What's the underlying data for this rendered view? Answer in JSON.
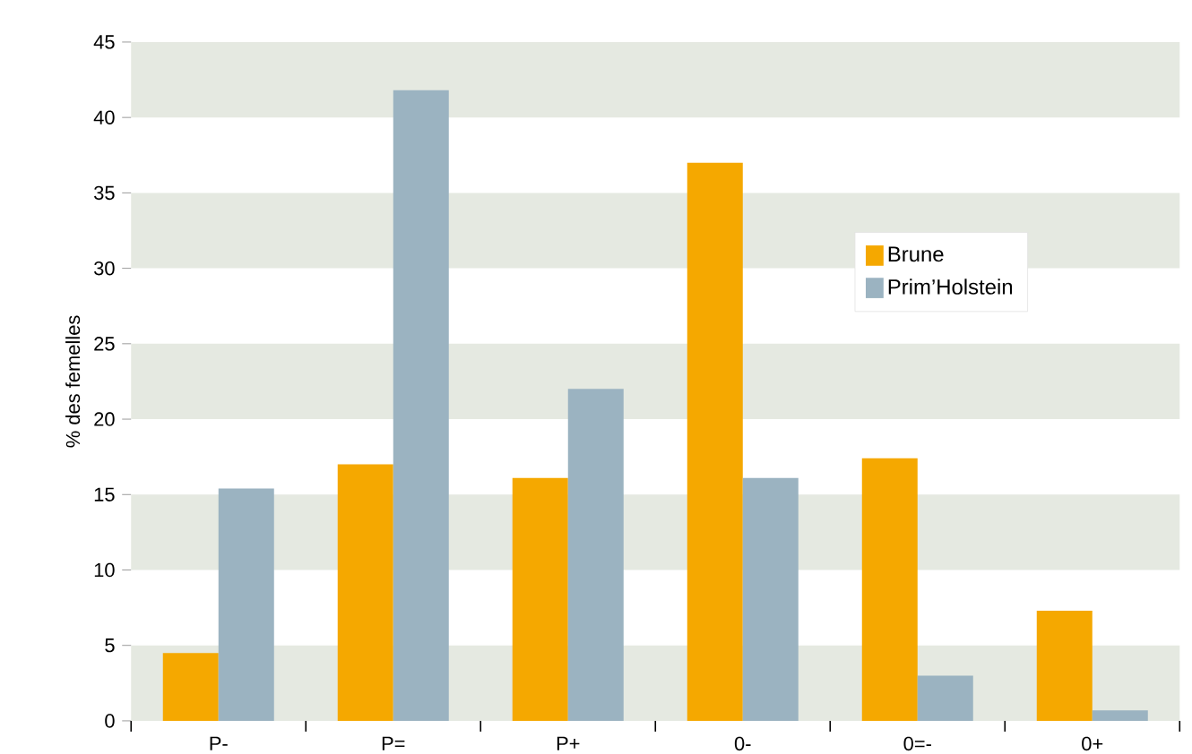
{
  "chart_data": {
    "type": "bar",
    "ylabel": "% des femelles",
    "categories": [
      "P-",
      "P=",
      "P+",
      "0-",
      "0=-",
      "0+"
    ],
    "series": [
      {
        "name": "Brune",
        "color": "#f5a800",
        "values": [
          4.5,
          17.0,
          16.1,
          37.0,
          17.4,
          7.3
        ]
      },
      {
        "name": "Prim’Holstein",
        "color": "#9bb3c1",
        "values": [
          15.4,
          41.8,
          22.0,
          16.1,
          3.0,
          0.7
        ]
      }
    ],
    "ylim": [
      0,
      45
    ],
    "yticks": [
      0,
      5,
      10,
      15,
      20,
      25,
      30,
      35,
      40,
      45
    ],
    "legend": "right",
    "bands": [
      {
        "axis": "y",
        "from": 0,
        "to": 5,
        "color": "#e5e9e1"
      },
      {
        "axis": "y",
        "from": 10,
        "to": 15,
        "color": "#e5e9e1"
      },
      {
        "axis": "y",
        "from": 20,
        "to": 25,
        "color": "#e5e9e1"
      },
      {
        "axis": "y",
        "from": 30,
        "to": 35,
        "color": "#e5e9e1"
      },
      {
        "axis": "y",
        "from": 40,
        "to": 45,
        "color": "#e5e9e1"
      }
    ]
  }
}
